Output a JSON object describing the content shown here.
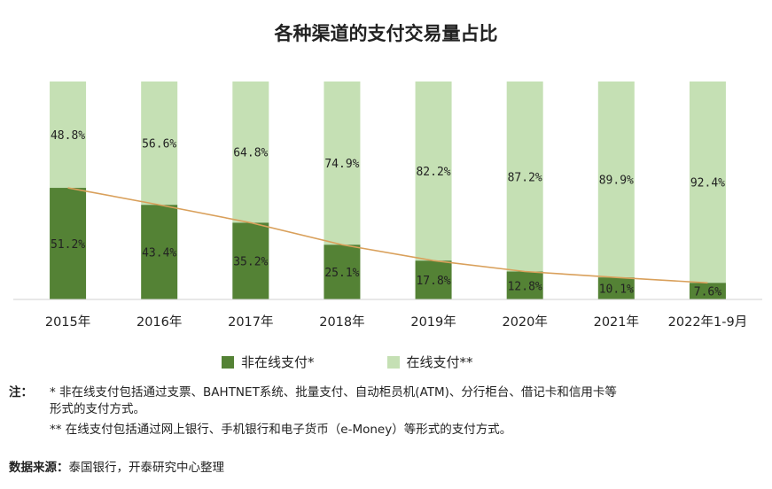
{
  "chart_data": {
    "type": "bar",
    "stacked": true,
    "title": "各种渠道的支付交易量占比",
    "categories": [
      "2015年",
      "2016年",
      "2017年",
      "2018年",
      "2019年",
      "2020年",
      "2021年",
      "2022年1-9月"
    ],
    "series": [
      {
        "name": "非在线支付*",
        "values": [
          51.2,
          43.4,
          35.2,
          25.1,
          17.8,
          12.8,
          10.1,
          7.6
        ],
        "labels": [
          "51.2%",
          "43.4%",
          "35.2%",
          "25.1%",
          "17.8%",
          "12.8%",
          "10.1%",
          "7.6%"
        ],
        "color": "#548235"
      },
      {
        "name": "在线支付**",
        "values": [
          48.8,
          56.6,
          64.8,
          74.9,
          82.2,
          87.2,
          89.9,
          92.4
        ],
        "labels": [
          "48.8%",
          "56.6%",
          "64.8%",
          "74.9%",
          "82.2%",
          "87.2%",
          "89.9%",
          "92.4%"
        ],
        "color": "#c5e0b4"
      }
    ],
    "trend_line_color": "#d9a05b",
    "ylim": [
      0,
      100
    ],
    "legend": "bottom",
    "grid": false
  },
  "notes": {
    "label": "注：",
    "note1": "* 非在线支付包括通过支票、BAHTNET系统、批量支付、自动柜员机(ATM)、分行柜台、借记卡和信用卡等",
    "note1_cont": "形式的支付方式。",
    "note2": "** 在线支付包括通过网上银行、手机银行和电子货币（e-Money）等形式的支付方式。"
  },
  "source": {
    "label": "数据来源：",
    "text": "泰国银行，开泰研究中心整理"
  }
}
